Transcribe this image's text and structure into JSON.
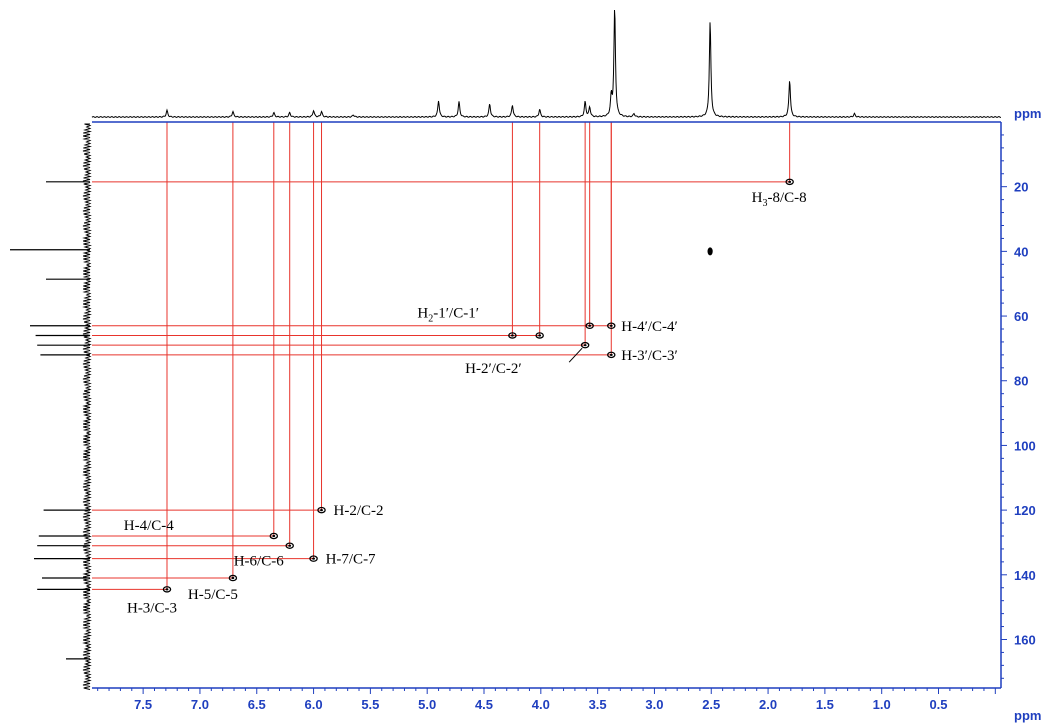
{
  "chart_data": {
    "type": "scatter",
    "title": "",
    "x_unit": "ppm",
    "y_unit": "ppm",
    "xlim": [
      7.95,
      -0.05
    ],
    "ylim": [
      0,
      175
    ],
    "x_ticks": [
      7.5,
      7.0,
      6.5,
      6.0,
      5.5,
      5.0,
      4.5,
      4.0,
      3.5,
      3.0,
      2.5,
      2.0,
      1.5,
      1.0,
      0.5
    ],
    "x_tick_labels": [
      "7.5",
      "7.0",
      "6.5",
      "6.0",
      "5.5",
      "5.0",
      "4.5",
      "4.0",
      "3.5",
      "3.0",
      "2.5",
      "2.0",
      "1.5",
      "1.0",
      "0.5"
    ],
    "y_ticks": [
      20,
      40,
      60,
      80,
      100,
      120,
      140,
      160
    ],
    "y_tick_labels": [
      "20",
      "40",
      "60",
      "80",
      "100",
      "120",
      "140",
      "160"
    ],
    "axis_color": "#1f3fbf",
    "line_color": "#e8342c",
    "correlations": [
      {
        "label_main": "H",
        "label_sub": "3",
        "label_rest": "-8/C-8",
        "h": 1.81,
        "c": 18.5
      },
      {
        "label_main": "H",
        "label_sub": "2",
        "label_rest": "-1′/C-1′",
        "h": 4.25,
        "c": 66.0,
        "h2": 4.01
      },
      {
        "label_main": "H-4′/C-4′",
        "label_sub": "",
        "label_rest": "",
        "h": 3.38,
        "c": 63.0,
        "h2": 3.57
      },
      {
        "label_main": "H-2′/C-2′",
        "label_sub": "",
        "label_rest": "",
        "h": 3.61,
        "c": 69.0
      },
      {
        "label_main": "H-3′/C-3′",
        "label_sub": "",
        "label_rest": "",
        "h": 3.38,
        "c": 72.0
      },
      {
        "label_main": "H-2/C-2",
        "label_sub": "",
        "label_rest": "",
        "h": 5.93,
        "c": 120.0
      },
      {
        "label_main": "H-4/C-4",
        "label_sub": "",
        "label_rest": "",
        "h": 6.35,
        "c": 128.0
      },
      {
        "label_main": "H-6/C-6",
        "label_sub": "",
        "label_rest": "",
        "h": 6.21,
        "c": 131.0
      },
      {
        "label_main": "H-7/C-7",
        "label_sub": "",
        "label_rest": "",
        "h": 6.0,
        "c": 135.0
      },
      {
        "label_main": "H-5/C-5",
        "label_sub": "",
        "label_rest": "",
        "h": 6.71,
        "c": 141.0
      },
      {
        "label_main": "H-3/C-3",
        "label_sub": "",
        "label_rest": "",
        "h": 7.29,
        "c": 144.5
      }
    ],
    "extra_peaks": [
      {
        "h": 2.51,
        "c": 40.0
      }
    ],
    "proton_spectrum_peaks": [
      {
        "ppm": 7.29,
        "height": 0.06
      },
      {
        "ppm": 6.71,
        "height": 0.05
      },
      {
        "ppm": 6.35,
        "height": 0.04
      },
      {
        "ppm": 6.21,
        "height": 0.04
      },
      {
        "ppm": 6.0,
        "height": 0.06
      },
      {
        "ppm": 5.93,
        "height": 0.05
      },
      {
        "ppm": 5.65,
        "height": 0.02
      },
      {
        "ppm": 4.9,
        "height": 0.15
      },
      {
        "ppm": 4.72,
        "height": 0.14
      },
      {
        "ppm": 4.45,
        "height": 0.12
      },
      {
        "ppm": 4.25,
        "height": 0.11
      },
      {
        "ppm": 4.01,
        "height": 0.07
      },
      {
        "ppm": 3.61,
        "height": 0.14
      },
      {
        "ppm": 3.57,
        "height": 0.09
      },
      {
        "ppm": 3.38,
        "height": 0.18
      },
      {
        "ppm": 3.35,
        "height": 1.0
      },
      {
        "ppm": 3.18,
        "height": 0.03
      },
      {
        "ppm": 2.51,
        "height": 0.88
      },
      {
        "ppm": 1.81,
        "height": 0.34
      },
      {
        "ppm": 1.24,
        "height": 0.03
      }
    ],
    "carbon_spectrum_peaks": [
      {
        "ppm": 18.5,
        "height": 0.55
      },
      {
        "ppm": 39.5,
        "height": 1.0
      },
      {
        "ppm": 48.6,
        "height": 0.55
      },
      {
        "ppm": 63.0,
        "height": 0.75
      },
      {
        "ppm": 66.0,
        "height": 0.68
      },
      {
        "ppm": 69.0,
        "height": 0.66
      },
      {
        "ppm": 72.0,
        "height": 0.62
      },
      {
        "ppm": 120.0,
        "height": 0.58
      },
      {
        "ppm": 128.0,
        "height": 0.64
      },
      {
        "ppm": 131.0,
        "height": 0.66
      },
      {
        "ppm": 135.0,
        "height": 0.7
      },
      {
        "ppm": 141.0,
        "height": 0.6
      },
      {
        "ppm": 144.5,
        "height": 0.66
      },
      {
        "ppm": 166.0,
        "height": 0.3
      }
    ]
  }
}
